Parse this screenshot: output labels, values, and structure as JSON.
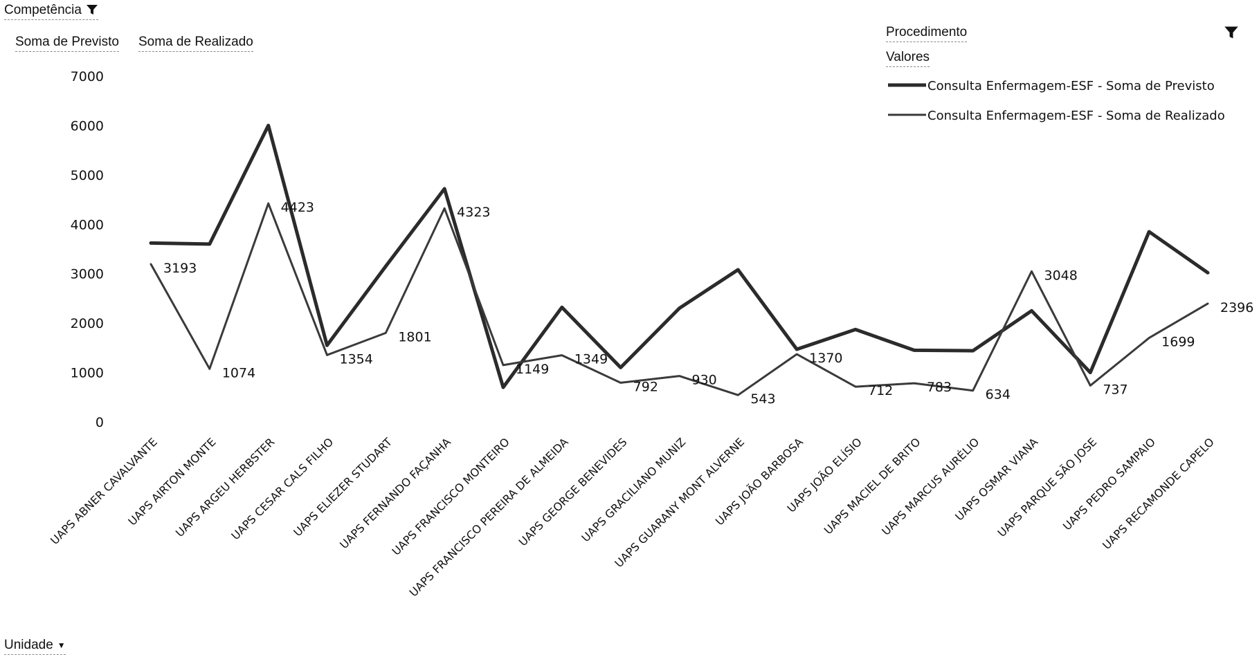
{
  "filters": {
    "top_left_label": "Competência",
    "procedimento_label": "Procedimento",
    "valores_label": "Valores",
    "row_field_label": "Unidade",
    "value_fields": [
      "Soma de Previsto",
      "Soma de Realizado"
    ]
  },
  "icons": {
    "filter": "filter-icon",
    "dropdown": "chevron-down-icon"
  },
  "colors": {
    "previsto": "#2b2b2b",
    "realizado": "#3a3a3a"
  },
  "chart_data": {
    "type": "line",
    "categories": [
      "UAPS ABNER CAVALVANTE",
      "UAPS AIRTON MONTE",
      "UAPS ARGEU HERBSTER",
      "UAPS CESAR CALS FILHO",
      "UAPS ELIEZER STUDART",
      "UAPS FERNANDO FAÇANHA",
      "UAPS FRANCISCO MONTEIRO",
      "UAPS FRANCISCO PEREIRA DE ALMEIDA",
      "UAPS GEORGE BENEVIDES",
      "UAPS GRACILIANO MUNIZ",
      "UAPS GUARANY MONT ALVERNE",
      "UAPS JOÃO BARBOSA",
      "UAPS JOÃO ELÍSIO",
      "UAPS MACIEL DE BRITO",
      "UAPS MARCUS AURÉLIO",
      "UAPS OSMAR VIANA",
      "UAPS PARQUE SÃO JOSE",
      "UAPS PEDRO SAMPAIO",
      "UAPS RECAMONDE CAPELO"
    ],
    "series": [
      {
        "name": "Consulta Enfermagem-ESF - Soma de Previsto",
        "values": [
          3620,
          3600,
          6000,
          1550,
          3150,
          4720,
          700,
          2320,
          1100,
          2300,
          3080,
          1470,
          1870,
          1450,
          1440,
          2250,
          1000,
          3850,
          3020
        ]
      },
      {
        "name": "Consulta Enfermagem-ESF - Soma de Realizado",
        "values": [
          3193,
          1074,
          4423,
          1354,
          1801,
          4323,
          1149,
          1349,
          792,
          930,
          543,
          1370,
          712,
          783,
          634,
          3048,
          737,
          1699,
          2396
        ],
        "labels": [
          "3193",
          "1074",
          "4423",
          "1354",
          "1801",
          "4323",
          "1149",
          "1349",
          "792",
          "930",
          "543",
          "1370",
          "712",
          "783",
          "634",
          "3048",
          "737",
          "1699",
          "2396"
        ]
      }
    ],
    "yticks": [
      "0",
      "1000",
      "2000",
      "3000",
      "4000",
      "5000",
      "6000",
      "7000"
    ],
    "ylim": [
      0,
      7000
    ],
    "grid": false,
    "legend_position": "top-right"
  }
}
